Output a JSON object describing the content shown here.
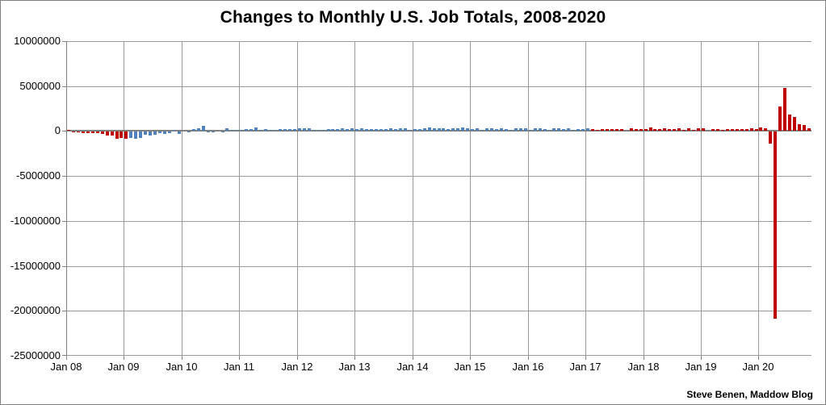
{
  "title": "Changes to Monthly U.S. Job Totals, 2008-2020",
  "attribution": "Steve Benen, Maddow Blog",
  "colors": {
    "red": "#C00000",
    "blue": "#4F81BD",
    "gridline": "#9a9a9a",
    "axis": "#808080",
    "background": "#FFFFFF",
    "text": "#000000"
  },
  "chart_data": {
    "type": "bar",
    "title": "Changes to Monthly U.S. Job Totals, 2008-2020",
    "xlabel": "",
    "ylabel": "",
    "units": "jobs per month (values stored in thousands)",
    "start_month": "2008-01",
    "end_month": "2020-11",
    "ylim": [
      -25000000,
      10000000
    ],
    "grid": true,
    "legend": "none",
    "y_ticks": [
      10000000,
      5000000,
      0,
      -5000000,
      -10000000,
      -15000000,
      -20000000,
      -25000000
    ],
    "y_tick_labels": [
      "10000000",
      "5000000",
      "0",
      "-5000000",
      "-10000000",
      "-15000000",
      "-20000000",
      "-25000000"
    ],
    "x_tick_labels": [
      "Jan 08",
      "Jan 09",
      "Jan 10",
      "Jan 11",
      "Jan 12",
      "Jan 13",
      "Jan 14",
      "Jan 15",
      "Jan 16",
      "Jan 17",
      "Jan 18",
      "Jan 19",
      "Jan 20"
    ],
    "color_segments": [
      {
        "from": 0,
        "to": 12,
        "color_key": "red"
      },
      {
        "from": 13,
        "to": 108,
        "color_key": "blue"
      },
      {
        "from": 109,
        "to": 154,
        "color_key": "red"
      }
    ],
    "values_thousands": [
      120,
      -85,
      -80,
      -215,
      -190,
      -170,
      -210,
      -275,
      -450,
      -475,
      -765,
      -695,
      -780,
      -725,
      -800,
      -685,
      -345,
      -470,
      -330,
      -215,
      -225,
      -200,
      65,
      -280,
      -40,
      -90,
      160,
      250,
      520,
      -130,
      -70,
      -35,
      -50,
      270,
      120,
      90,
      70,
      170,
      210,
      320,
      100,
      220,
      105,
      120,
      220,
      180,
      140,
      195,
      310,
      270,
      240,
      75,
      115,
      85,
      140,
      180,
      160,
      225,
      150,
      240,
      200,
      280,
      140,
      200,
      200,
      145,
      140,
      270,
      185,
      225,
      290,
      75,
      165,
      190,
      230,
      330,
      235,
      285,
      250,
      210,
      260,
      245,
      330,
      255,
      200,
      265,
      85,
      250,
      275,
      205,
      250,
      150,
      100,
      270,
      280,
      270,
      125,
      235,
      225,
      150,
      45,
      300,
      290,
      180,
      250,
      125,
      165,
      155,
      260,
      200,
      75,
      175,
      145,
      210,
      190,
      220,
      15,
      260,
      215,
      175,
      170,
      375,
      190,
      180,
      270,
      210,
      180,
      285,
      110,
      275,
      120,
      230,
      270,
      5,
      150,
      215,
      85,
      180,
      195,
      210,
      210,
      185,
      260,
      185,
      315,
      290,
      -1375,
      -20790,
      2725,
      4780,
      1760,
      1490,
      715,
      640,
      245
    ]
  }
}
